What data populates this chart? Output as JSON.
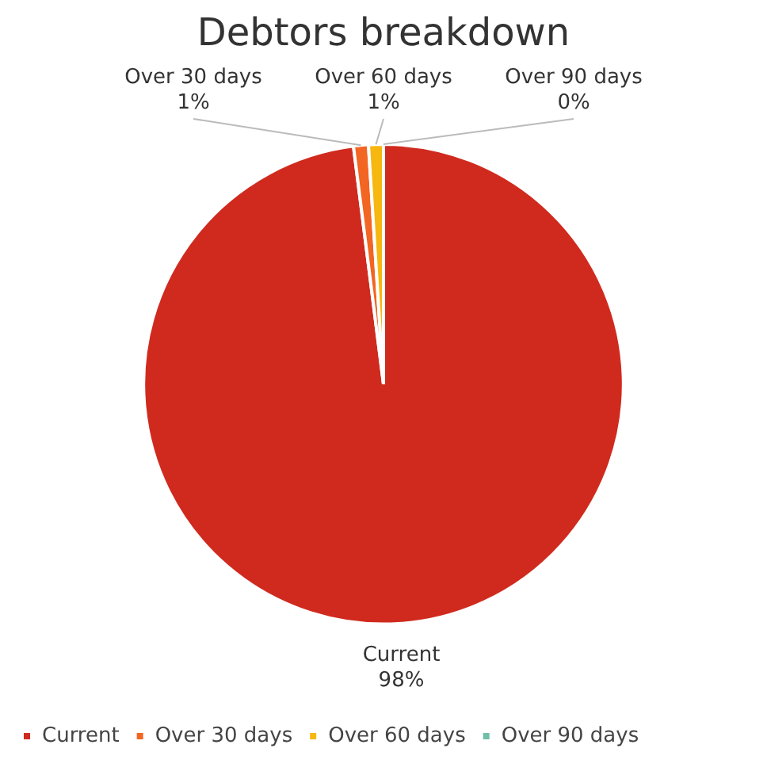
{
  "chart_data": {
    "type": "pie",
    "title": "Debtors breakdown",
    "categories": [
      "Current",
      "Over 30 days",
      "Over 60 days",
      "Over 90 days"
    ],
    "values": [
      98,
      1,
      1,
      0
    ],
    "value_labels": [
      "98%",
      "1%",
      "1%",
      "0%"
    ],
    "colors": [
      "#d02a1e",
      "#f26522",
      "#f7b711",
      "#6fbfa8"
    ],
    "legend": "bottom"
  }
}
